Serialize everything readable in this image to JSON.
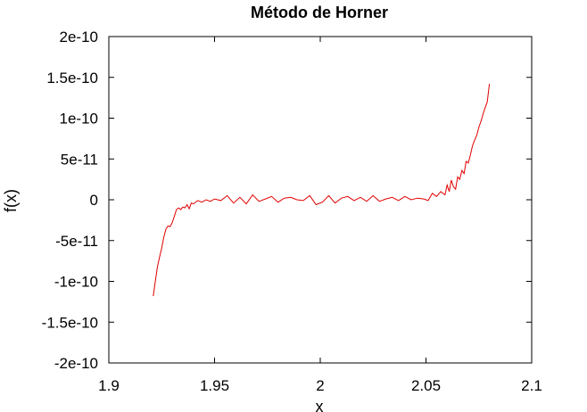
{
  "chart_data": {
    "type": "line",
    "title": "Método de Horner",
    "xlabel": "x",
    "ylabel": "f(x)",
    "xlim": [
      1.9,
      2.1
    ],
    "ylim": [
      -2e-10,
      2e-10
    ],
    "xticks": [
      {
        "value": 1.9,
        "label": "1.9"
      },
      {
        "value": 1.95,
        "label": "1.95"
      },
      {
        "value": 2.0,
        "label": "2"
      },
      {
        "value": 2.05,
        "label": "2.05"
      },
      {
        "value": 2.1,
        "label": "2.1"
      }
    ],
    "yticks": [
      {
        "value": 2e-10,
        "label": "2e-10"
      },
      {
        "value": 1.5e-10,
        "label": "1.5e-10"
      },
      {
        "value": 1e-10,
        "label": "1e-10"
      },
      {
        "value": 5e-11,
        "label": "5e-11"
      },
      {
        "value": 0,
        "label": "0"
      },
      {
        "value": -5e-11,
        "label": "-5e-11"
      },
      {
        "value": -1e-10,
        "label": "-1e-10"
      },
      {
        "value": -1.5e-10,
        "label": "-1.5e-10"
      },
      {
        "value": -2e-10,
        "label": "-2e-10"
      }
    ],
    "grid": false,
    "legend": "none",
    "series": [
      {
        "color": "#e00000",
        "x": [
          1.921,
          1.922,
          1.923,
          1.924,
          1.925,
          1.926,
          1.927,
          1.928,
          1.929,
          1.93,
          1.931,
          1.932,
          1.933,
          1.934,
          1.935,
          1.936,
          1.937,
          1.938,
          1.939,
          1.94,
          1.942,
          1.944,
          1.946,
          1.948,
          1.95,
          1.953,
          1.956,
          1.959,
          1.962,
          1.965,
          1.968,
          1.971,
          1.974,
          1.977,
          1.98,
          1.983,
          1.986,
          1.989,
          1.992,
          1.995,
          1.998,
          2.001,
          2.004,
          2.007,
          2.01,
          2.013,
          2.016,
          2.019,
          2.022,
          2.025,
          2.028,
          2.031,
          2.034,
          2.037,
          2.04,
          2.043,
          2.046,
          2.049,
          2.051,
          2.053,
          2.055,
          2.057,
          2.059,
          2.06,
          2.061,
          2.062,
          2.063,
          2.064,
          2.065,
          2.066,
          2.067,
          2.068,
          2.069,
          2.07,
          2.071,
          2.072,
          2.073,
          2.074,
          2.075,
          2.076,
          2.077,
          2.078,
          2.079,
          2.08
        ],
        "y": [
          -1.18e-10,
          -1e-10,
          -8.2e-11,
          -7e-11,
          -5.9e-11,
          -4.6e-11,
          -3.6e-11,
          -3.2e-11,
          -3.3e-11,
          -2.8e-11,
          -2e-11,
          -1.2e-11,
          -1e-11,
          -1.2e-11,
          -9e-12,
          -1e-11,
          -6e-12,
          -1.1e-11,
          -4e-12,
          -5e-12,
          -1e-12,
          -3e-12,
          0,
          -2e-12,
          1e-12,
          -1e-12,
          5e-12,
          -4e-12,
          3e-12,
          -5e-12,
          6e-12,
          -2e-12,
          1e-12,
          4e-12,
          -3e-12,
          2e-12,
          3e-12,
          0,
          -1e-12,
          5e-12,
          -6e-12,
          -3e-12,
          5e-12,
          -4e-12,
          2e-12,
          4e-12,
          -1e-12,
          3e-12,
          -2e-12,
          5e-12,
          -2e-12,
          1e-12,
          3e-12,
          -1e-12,
          4e-12,
          0,
          2e-12,
          1e-12,
          -1e-12,
          8e-12,
          4e-12,
          1e-11,
          6e-12,
          1.8e-11,
          1e-11,
          2.4e-11,
          1.6e-11,
          1.3e-11,
          2.8e-11,
          2.5e-11,
          3.6e-11,
          3.2e-11,
          4.7e-11,
          4.5e-11,
          5.5e-11,
          6.6e-11,
          7.3e-11,
          7.9e-11,
          8.9e-11,
          9.6e-11,
          1.05e-10,
          1.13e-10,
          1.2e-10,
          1.42e-10
        ]
      }
    ]
  }
}
